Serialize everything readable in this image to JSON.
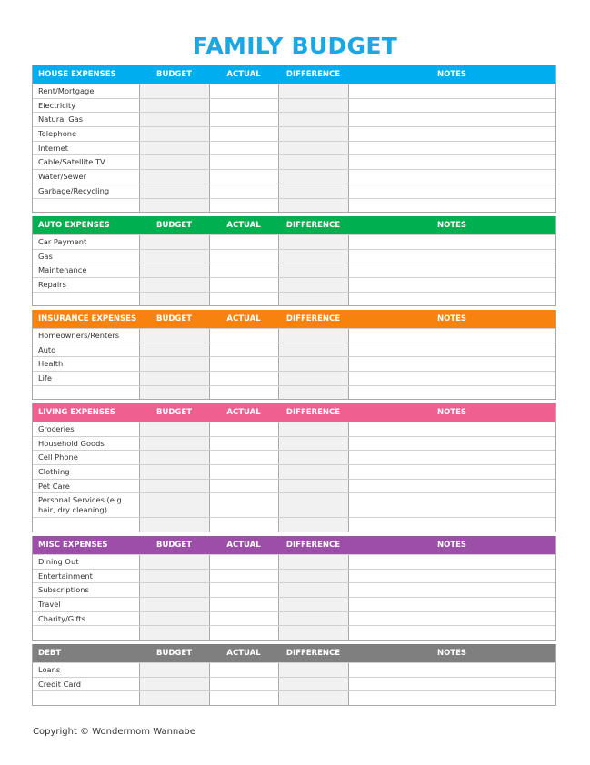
{
  "title": "FAMILY BUDGET",
  "columns": {
    "budget": "BUDGET",
    "actual": "ACTUAL",
    "difference": "DIFFERENCE",
    "notes": "NOTES"
  },
  "sections": [
    {
      "name": "HOUSE EXPENSES",
      "color": "#00aeef",
      "items": [
        "Rent/Mortgage",
        "Electricity",
        "Natural Gas",
        "Telephone",
        "Internet",
        "Cable/Satellite TV",
        "Water/Sewer",
        "Garbage/Recycling",
        ""
      ]
    },
    {
      "name": "AUTO EXPENSES",
      "color": "#00b050",
      "items": [
        "Car Payment",
        "Gas",
        "Maintenance",
        "Repairs",
        ""
      ]
    },
    {
      "name": "INSURANCE EXPENSES",
      "color": "#f7830f",
      "items": [
        "Homeowners/Renters",
        "Auto",
        "Health",
        "Life",
        ""
      ]
    },
    {
      "name": "LIVING EXPENSES",
      "color": "#ef5f8f",
      "items": [
        "Groceries",
        "Household Goods",
        "Cell Phone",
        "Clothing",
        "Pet Care",
        "Personal Services (e.g. hair, dry cleaning)",
        ""
      ]
    },
    {
      "name": "MISC EXPENSES",
      "color": "#9b4fa6",
      "items": [
        "Dining Out",
        "Entertainment",
        "Subscriptions",
        "Travel",
        "Charity/Gifts",
        ""
      ]
    },
    {
      "name": "DEBT",
      "color": "#7f7f7f",
      "items": [
        "Loans",
        "Credit Card",
        ""
      ]
    }
  ],
  "copyright": "Copyright © Wondermom Wannabe"
}
